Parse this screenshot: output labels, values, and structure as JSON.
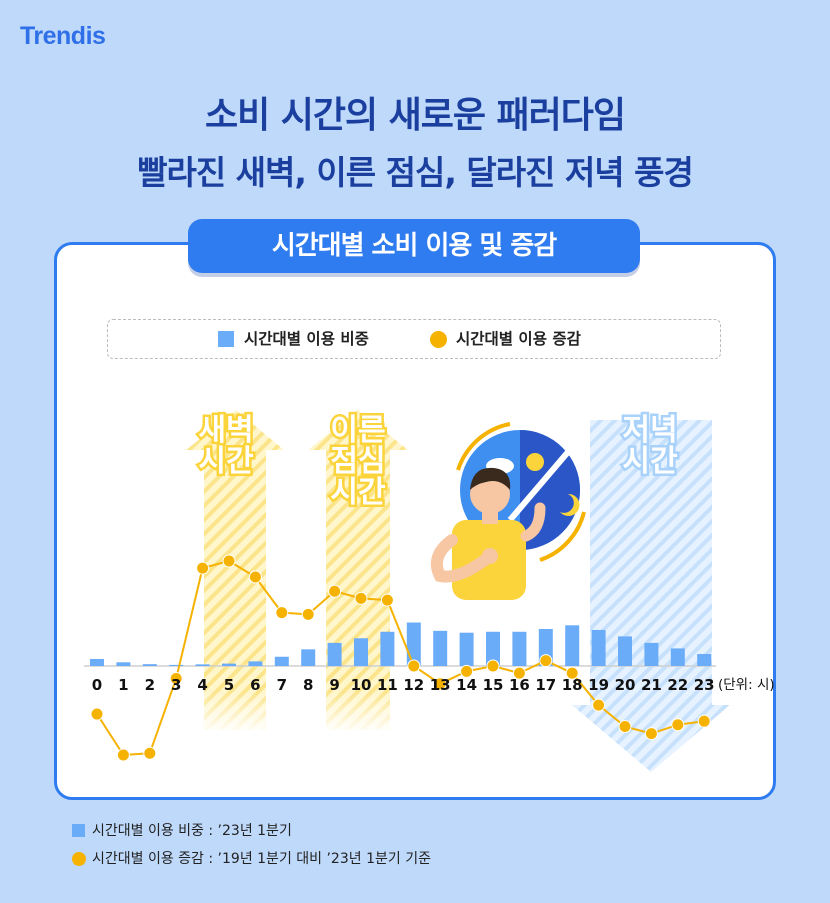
{
  "brand": {
    "logo_text": "Trendis"
  },
  "header": {
    "title": "소비 시간의 새로운 패러다임",
    "subtitle": "빨라진 새벽, 이른 점심, 달라진 저녁 풍경"
  },
  "card": {
    "title": "시간대별 소비 이용 및 증감"
  },
  "legend": {
    "items": [
      {
        "label": "시간대별 이용 비중",
        "color": "#6aacf8"
      },
      {
        "label": "시간대별 이용 증감",
        "color": "#f6b200"
      }
    ]
  },
  "highlights": [
    {
      "lines": [
        "새벽",
        "시간"
      ],
      "color": "#fbd43c"
    },
    {
      "lines": [
        "이른",
        "점심",
        "시간"
      ],
      "color": "#fbd43c"
    },
    {
      "lines": [
        "저녁",
        "시간"
      ],
      "color": "#a9d2fb"
    }
  ],
  "chart_data": {
    "type": "bar",
    "categories": [
      "0",
      "1",
      "2",
      "3",
      "4",
      "5",
      "6",
      "7",
      "8",
      "9",
      "10",
      "11",
      "12",
      "13",
      "14",
      "15",
      "16",
      "17",
      "18",
      "19",
      "20",
      "21",
      "22",
      "23"
    ],
    "unit_label": "(단위: 시)",
    "series": [
      {
        "name": "시간대별 이용 비중",
        "kind": "bar",
        "color": "#6aacf8",
        "values": [
          3.8,
          2.0,
          1.0,
          0.6,
          0.9,
          1.3,
          2.5,
          5.0,
          9.0,
          12.5,
          15.0,
          18.5,
          23.5,
          19.0,
          18.0,
          18.5,
          18.5,
          20.0,
          22.0,
          19.5,
          16.0,
          12.5,
          9.5,
          6.5
        ]
      },
      {
        "name": "시간대별 이용 증감",
        "kind": "line",
        "color": "#f6b200",
        "values": [
          -27,
          -50,
          -49,
          -7,
          55,
          59,
          50,
          30,
          29,
          42,
          38,
          37,
          0,
          -10,
          -3,
          0,
          -4,
          3,
          -4,
          -22,
          -34,
          -38,
          -33,
          -31
        ]
      }
    ],
    "grid": false
  },
  "notes": [
    "시간대별 이용 비중 : ’23년 1분기",
    "시간대별 이용 증감 : ’19년 1분기 대비 ’23년 1분기 기준"
  ],
  "illustration": {
    "icon": "person-day-night-icon"
  }
}
